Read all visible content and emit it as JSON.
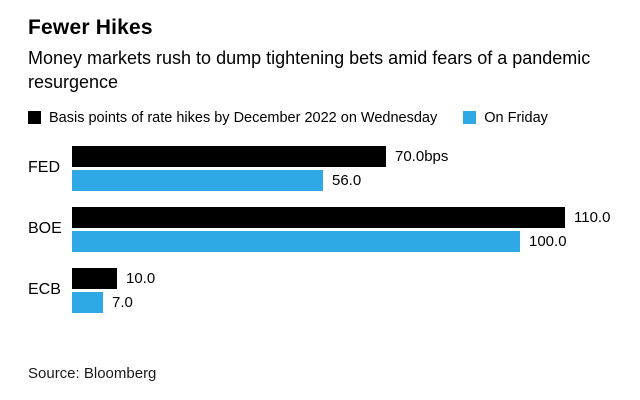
{
  "title": "Fewer Hikes",
  "subtitle": "Money markets rush to dump tightening bets amid fears of a pandemic resurgence",
  "source": "Source: Bloomberg",
  "colors": {
    "series_wednesday": "#000000",
    "series_friday": "#2FA9E5",
    "background": "#ffffff",
    "text": "#000000"
  },
  "chart_data": {
    "type": "bar",
    "orientation": "horizontal",
    "title": "Fewer Hikes",
    "subtitle": "Money markets rush to dump tightening bets amid fears of a pandemic resurgence",
    "xlabel": "",
    "ylabel": "",
    "xlim": [
      0,
      110
    ],
    "grid": false,
    "legend_position": "top",
    "categories": [
      "FED",
      "BOE",
      "ECB"
    ],
    "series": [
      {
        "name": "Basis points of rate hikes by December 2022 on Wednesday",
        "color": "#000000",
        "values": [
          70.0,
          110.0,
          10.0
        ],
        "labels": [
          "70.0bps",
          "110.0",
          "10.0"
        ]
      },
      {
        "name": "On Friday",
        "color": "#2FA9E5",
        "values": [
          56.0,
          100.0,
          7.0
        ],
        "labels": [
          "56.0",
          "100.0",
          "7.0"
        ]
      }
    ]
  }
}
